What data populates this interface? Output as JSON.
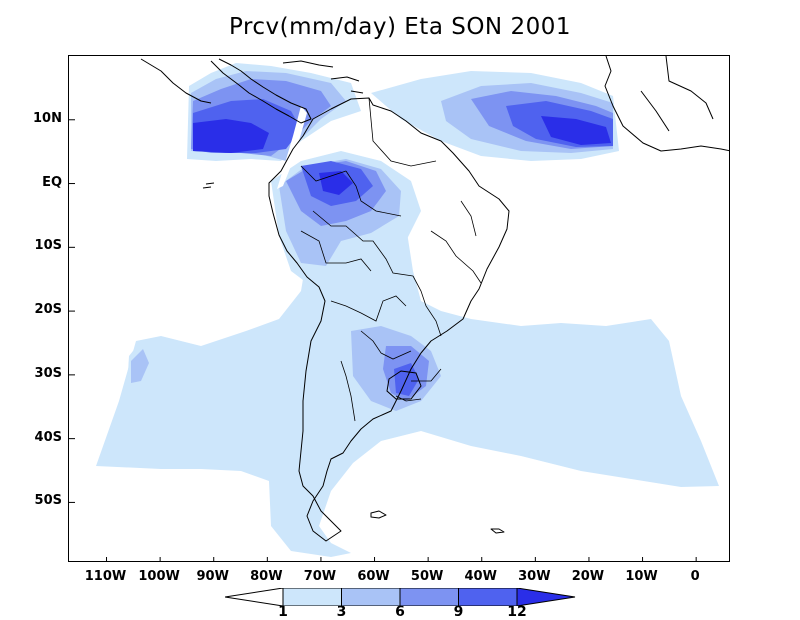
{
  "title": "Prcv(mm/day) Eta SON 2001",
  "lat_labels": [
    {
      "text": "10N",
      "lat": 10
    },
    {
      "text": "EQ",
      "lat": 0
    },
    {
      "text": "10S",
      "lat": -10
    },
    {
      "text": "20S",
      "lat": -20
    },
    {
      "text": "30S",
      "lat": -30
    },
    {
      "text": "40S",
      "lat": -40
    },
    {
      "text": "50S",
      "lat": -50
    }
  ],
  "lon_labels": [
    {
      "text": "110W",
      "lon": -110
    },
    {
      "text": "100W",
      "lon": -100
    },
    {
      "text": "90W",
      "lon": -90
    },
    {
      "text": "80W",
      "lon": -80
    },
    {
      "text": "70W",
      "lon": -70
    },
    {
      "text": "60W",
      "lon": -60
    },
    {
      "text": "50W",
      "lon": -50
    },
    {
      "text": "40W",
      "lon": -40
    },
    {
      "text": "30W",
      "lon": -30
    },
    {
      "text": "20W",
      "lon": -20
    },
    {
      "text": "10W",
      "lon": -10
    },
    {
      "text": "0",
      "lon": 0
    }
  ],
  "colorbar": {
    "levels": [
      "1",
      "3",
      "6",
      "9",
      "12"
    ],
    "colors": [
      "#ffffff",
      "#cde6fb",
      "#a9c3f6",
      "#7d93f2",
      "#4f62ef",
      "#2a2ee8"
    ]
  },
  "map_extent": {
    "lon_min": -117,
    "lon_max": 6.5,
    "lat_min": -59.5,
    "lat_max": 20
  },
  "colors": {
    "level_1": "#cde6fb",
    "level_3": "#a9c3f6",
    "level_6": "#7d93f2",
    "level_9": "#4f62ef",
    "level_12": "#2a2ee8",
    "coast": "#000000"
  }
}
